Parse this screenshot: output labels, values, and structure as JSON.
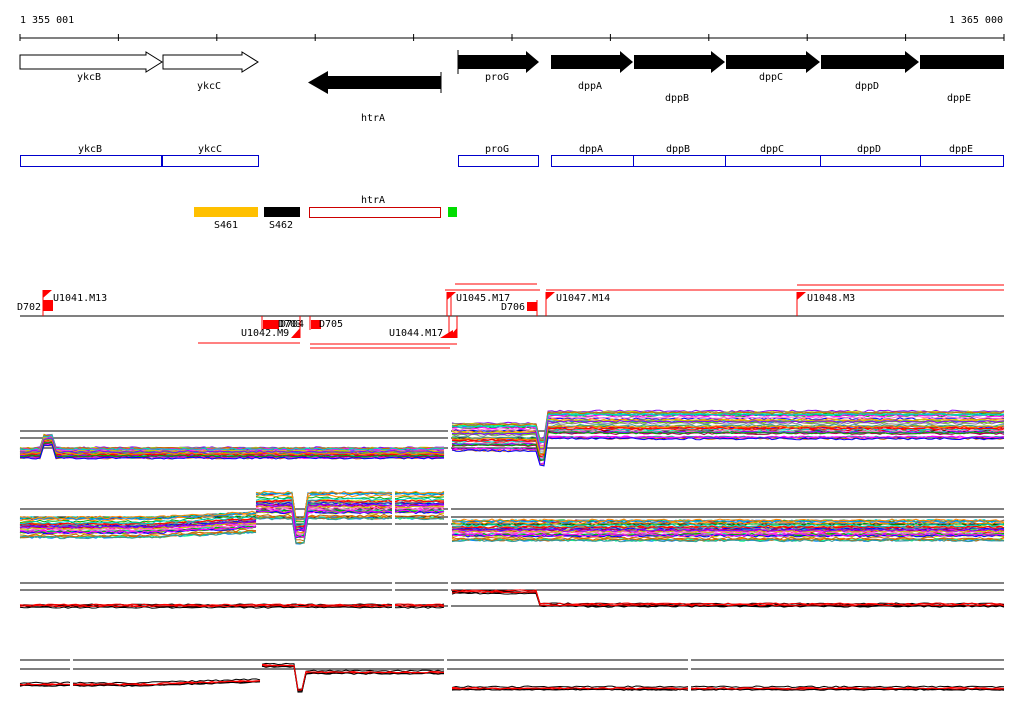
{
  "ruler": {
    "start_label": "1 355 001",
    "end_label": "1 365 000"
  },
  "genes_forward": [
    {
      "name": "ykcB",
      "style": "open"
    },
    {
      "name": "ykcC",
      "style": "open"
    },
    {
      "name": "proG",
      "style": "filled"
    },
    {
      "name": "dppA",
      "style": "filled"
    },
    {
      "name": "dppB",
      "style": "filled"
    },
    {
      "name": "dppC",
      "style": "filled"
    },
    {
      "name": "dppD",
      "style": "filled"
    },
    {
      "name": "dppE",
      "style": "filled"
    }
  ],
  "genes_reverse": [
    {
      "name": "htrA",
      "style": "filled"
    }
  ],
  "gene_boxes_forward": [
    "ykcB",
    "ykcC",
    "proG",
    "dppA",
    "dppB",
    "dppC",
    "dppD",
    "dppE"
  ],
  "gene_boxes_reverse": [
    "htrA"
  ],
  "segments": [
    {
      "name": "S461",
      "color": "#FFC000"
    },
    {
      "name": "S462",
      "color": "#000000"
    },
    {
      "name": "",
      "color": "#00DD00"
    }
  ],
  "features_top": [
    "D702",
    "U1041.M13",
    "U1045.M17",
    "D706",
    "U1047.M14",
    "U1048.M3"
  ],
  "features_bottom": [
    "D704",
    "D703",
    "U1042.M9",
    "D705",
    "U1044.M17"
  ],
  "colors": {
    "gene_box_outline": "#0000CC",
    "feature_red": "#FF0000",
    "segment_yellow": "#FFC000",
    "segment_green": "#00DD00"
  }
}
